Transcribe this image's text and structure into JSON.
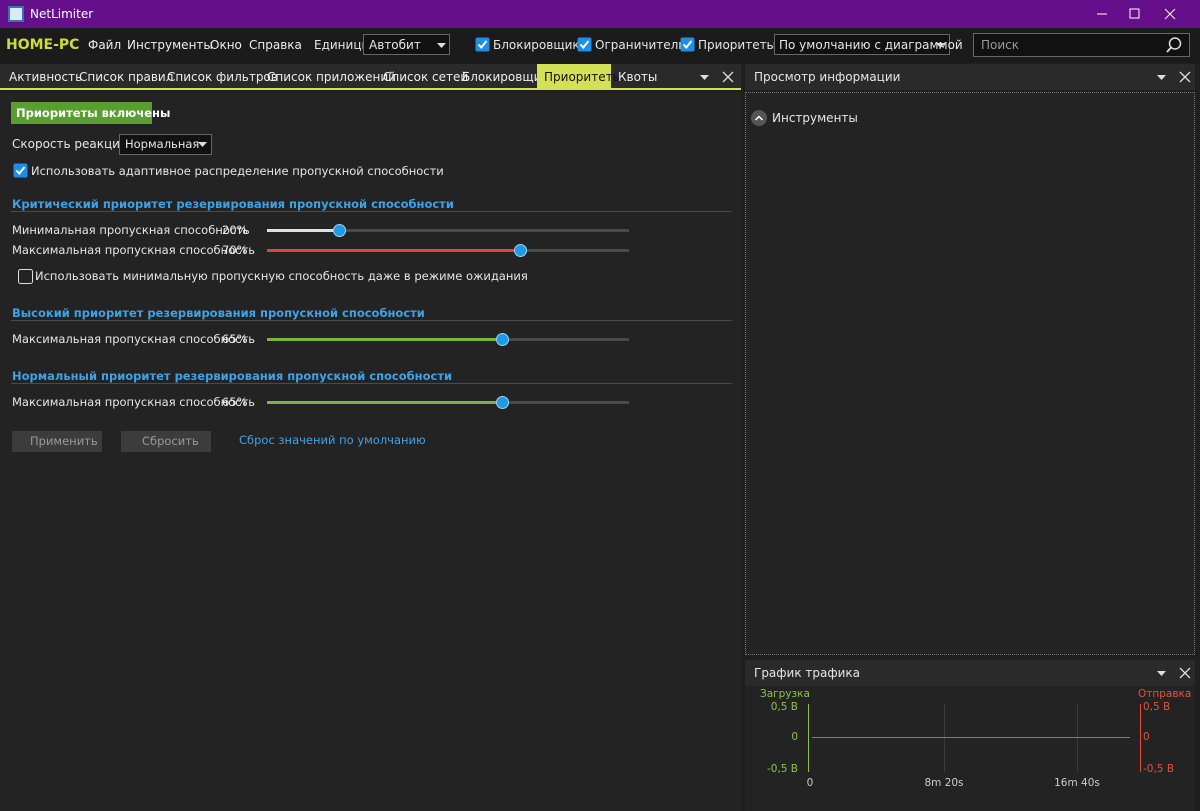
{
  "window": {
    "title": "NetLimiter"
  },
  "toolbar": {
    "host": "HOME-PC",
    "menu": [
      "Файл",
      "Инструменты",
      "Окно",
      "Справка"
    ],
    "units_label": "Единицы",
    "units_value": "Автобит",
    "checkboxes": [
      {
        "label": "Блокировщик",
        "checked": true
      },
      {
        "label": "Ограничитель",
        "checked": true
      },
      {
        "label": "Приоритеты",
        "checked": true
      }
    ],
    "view": "По умолчанию с диаграммой",
    "search_placeholder": "Поиск"
  },
  "tabs": {
    "items": [
      "Активность",
      "Список правил",
      "Список фильтров",
      "Список приложений",
      "Список сетей",
      "Блокировщик",
      "Приоритеты",
      "Квоты"
    ],
    "active": 6
  },
  "priorities": {
    "status_button": "Приоритеты включены",
    "reaction_label": "Скорость реакции:",
    "reaction_value": "Нормальная",
    "adaptive": {
      "label": "Использовать адаптивное распределение пропускной способности",
      "checked": true
    },
    "sections": [
      {
        "title": "Критический приоритет резервирования пропускной способности",
        "sliders": [
          {
            "label": "Минимальная пропускная способность",
            "value": 20,
            "value_label": "20%",
            "color": "#e0e0e0"
          },
          {
            "label": "Максимальная пропускная способность",
            "value": 70,
            "value_label": "70%",
            "color": "#d9473b"
          }
        ],
        "option": {
          "label": "Использовать минимальную пропускную способность даже в режиме ожидания",
          "checked": false
        }
      },
      {
        "title": "Высокий приоритет резервирования пропускной способности",
        "sliders": [
          {
            "label": "Максимальная пропускная способность",
            "value": 65,
            "value_label": "65%",
            "color": "#7cb342"
          }
        ]
      },
      {
        "title": "Нормальный приоритет резервирования пропускной способности",
        "sliders": [
          {
            "label": "Максимальная пропускная способность",
            "value": 65,
            "value_label": "65%",
            "color": "#7cb342"
          }
        ]
      }
    ],
    "apply": "Применить",
    "reset": "Сбросить",
    "defaults_link": "Сброс значений по умолчанию"
  },
  "info_panel": {
    "title": "Просмотр информации",
    "group": "Инструменты"
  },
  "traffic_panel": {
    "title": "График трафика",
    "download": "Загрузка",
    "upload": "Отправка",
    "left_ticks": [
      "0,5 B",
      "0",
      "-0,5 B"
    ],
    "right_ticks": [
      "0,5 B",
      "0",
      "-0,5 B"
    ],
    "x_ticks": [
      "0",
      "8m 20s",
      "16m 40s"
    ]
  }
}
